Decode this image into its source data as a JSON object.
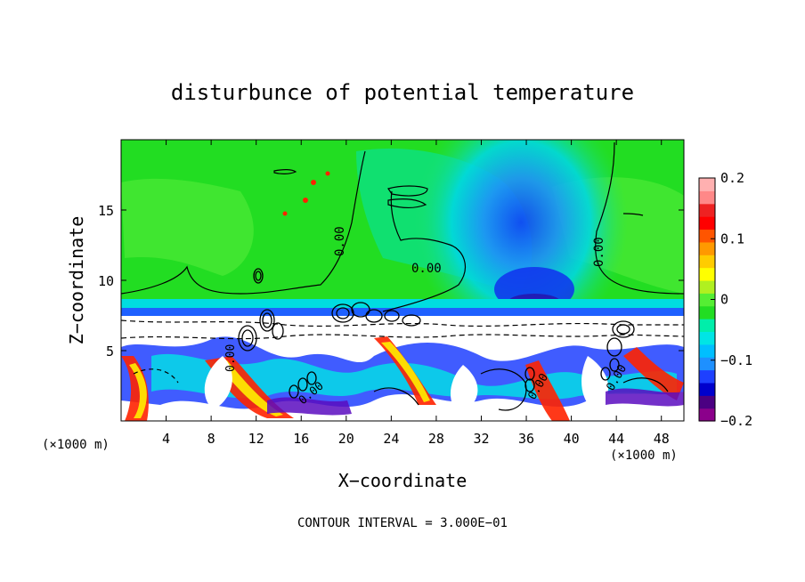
{
  "chart_data": {
    "type": "heatmap",
    "title": "disturbunce of potential temperature",
    "xlabel": "X−coordinate",
    "ylabel": "Z−coordinate",
    "x_unit_left": "(×1000 m)",
    "x_unit_right": "(×1000 m)",
    "xlim": [
      0,
      50
    ],
    "ylim": [
      0,
      20
    ],
    "xticks": [
      4,
      8,
      12,
      16,
      20,
      24,
      28,
      32,
      36,
      40,
      44,
      48
    ],
    "xtick_labels": [
      "4",
      "8",
      "12",
      "16",
      "20",
      "24",
      "28",
      "32",
      "36",
      "40",
      "44",
      "48"
    ],
    "yticks": [
      5,
      10,
      15
    ],
    "ytick_labels": [
      "5",
      "10",
      "15"
    ],
    "colorbar": {
      "range": [
        -0.2,
        0.2
      ],
      "ticks": [
        0.2,
        0.1,
        0,
        -0.1,
        -0.2
      ],
      "tick_labels": [
        "0.2",
        "0.1",
        "0",
        "−0.1",
        "−0.2"
      ],
      "colors": [
        "#8b008b",
        "#4b0082",
        "#0000cd",
        "#1e40ff",
        "#1e90ff",
        "#00bfff",
        "#00e5e5",
        "#00eeaa",
        "#22dd22",
        "#55ee33",
        "#b0f020",
        "#ffff00",
        "#ffcc00",
        "#ff9900",
        "#ff5500",
        "#ff0000",
        "#ee2222",
        "#ff8888",
        "#ffb0b0"
      ]
    },
    "contour_labels": [
      "0.00",
      "0.00",
      "0.00",
      "0.00",
      "0.00",
      "0.00",
      "0.00"
    ],
    "footnote": "CONTOUR INTERVAL = 3.000E−01"
  }
}
